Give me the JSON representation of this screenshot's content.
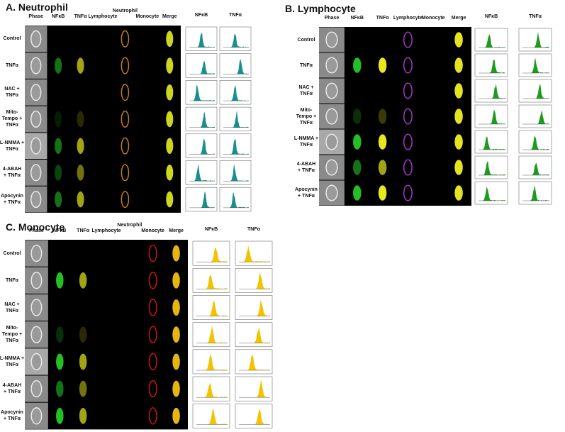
{
  "panels": [
    {
      "title": "A. Neutrophil",
      "columns": [
        "Phase",
        "NFκB",
        "TNFα",
        "Lymphocyte",
        "Neutrophil",
        "Monocyte",
        "Merge"
      ],
      "histograms": [
        "NFκB",
        "TNFα"
      ],
      "rows": [
        "Control",
        "TNFα",
        "NAC +\nTNFα",
        "Mito-\nTempo +\nTNFα",
        "L-NMMA +\nTNFα",
        "4-ABAH\n+ TNFα",
        "Apocynin\n+ TNFα"
      ]
    },
    {
      "title": "B. Lymphocyte",
      "columns": [
        "Phase",
        "NFκB",
        "TNFα",
        "Lymphocyte",
        "Monocyte",
        "Merge"
      ],
      "histograms": [
        "NFκB",
        "TNFα"
      ],
      "rows": [
        "Control",
        "TNFα",
        "NAC +\nTNFα",
        "Mito-\nTempo +\nTNFα",
        "L-NMMA +\nTNFα",
        "4-ABAH\n+ TNFα",
        "Apocynin\n+ TNFα"
      ]
    },
    {
      "title": "C. Monocyte",
      "columns": [
        "Phase",
        "NFκB",
        "TNFα",
        "Lymphocyte",
        "Neutrophil",
        "Monocyte",
        "Merge"
      ],
      "histograms": [
        "NFκB",
        "TNFα"
      ],
      "rows": [
        "Control",
        "TNFα",
        "NAC +\nTNFα",
        "Mito-\nTempo +\nTNFα",
        "L-NMMA +\nTNFα",
        "4-ABAH\n+ TNFα",
        "Apocynin\n+ TNFα"
      ]
    }
  ]
}
